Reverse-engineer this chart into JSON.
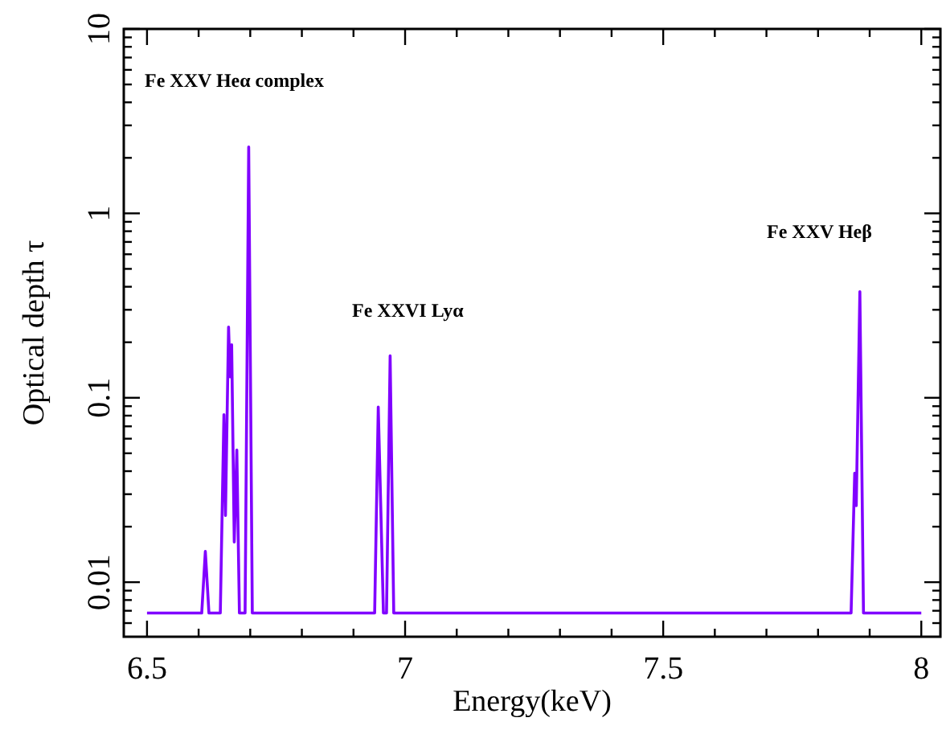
{
  "chart_data": {
    "type": "line",
    "xlabel": "Energy(keV)",
    "ylabel": "Optical depth τ",
    "log": "y",
    "grid": false,
    "line_style": "solid",
    "xlim": [
      6.455,
      8.037
    ],
    "ylim": [
      0.00506,
      10
    ],
    "xticks": [
      6.5,
      {
        "value": 6.6,
        "label": null
      },
      {
        "value": 6.7,
        "label": null
      },
      {
        "value": 6.8,
        "label": null
      },
      {
        "value": 6.9,
        "label": null
      },
      7,
      {
        "value": 7.1,
        "label": null
      },
      {
        "value": 7.2,
        "label": null
      },
      {
        "value": 7.3,
        "label": null
      },
      {
        "value": 7.4,
        "label": null
      },
      7.5,
      {
        "value": 7.6,
        "label": null
      },
      {
        "value": 7.7,
        "label": null
      },
      {
        "value": 7.8,
        "label": null
      },
      {
        "value": 7.9,
        "label": null
      },
      8
    ],
    "yticks": [
      {
        "value": 0.006,
        "label": null
      },
      {
        "value": 0.007,
        "label": null
      },
      {
        "value": 0.008,
        "label": null
      },
      {
        "value": 0.009,
        "label": null
      },
      0.01,
      {
        "value": 0.02,
        "label": null
      },
      {
        "value": 0.03,
        "label": null
      },
      {
        "value": 0.04,
        "label": null
      },
      {
        "value": 0.05,
        "label": null
      },
      {
        "value": 0.06,
        "label": null
      },
      {
        "value": 0.07,
        "label": null
      },
      {
        "value": 0.08,
        "label": null
      },
      {
        "value": 0.09,
        "label": null
      },
      0.1,
      {
        "value": 0.2,
        "label": null
      },
      {
        "value": 0.3,
        "label": null
      },
      {
        "value": 0.4,
        "label": null
      },
      {
        "value": 0.5,
        "label": null
      },
      {
        "value": 0.6,
        "label": null
      },
      {
        "value": 0.7,
        "label": null
      },
      {
        "value": 0.8,
        "label": null
      },
      {
        "value": 0.9,
        "label": null
      },
      1,
      {
        "value": 2,
        "label": null
      },
      {
        "value": 3,
        "label": null
      },
      {
        "value": 4,
        "label": null
      },
      {
        "value": 5,
        "label": null
      },
      {
        "value": 6,
        "label": null
      },
      {
        "value": 7,
        "label": null
      },
      {
        "value": 8,
        "label": null
      },
      {
        "value": 9,
        "label": null
      },
      10
    ],
    "annotations": [
      "Fe XXV Heα complex",
      "Fe XXVI Lyα",
      "Fe XXV Heβ"
    ],
    "series": [
      {
        "color": "#8000ff",
        "x": [
          6.5,
          6.606,
          6.613,
          6.62,
          6.642,
          6.649,
          6.652,
          6.658,
          6.661,
          6.664,
          6.669,
          6.674,
          6.679,
          6.69,
          6.697,
          6.704,
          6.941,
          6.948,
          6.958,
          6.964,
          6.971,
          6.978,
          7.864,
          7.871,
          7.874,
          7.881,
          7.888,
          8.0
        ],
        "values": [
          0.0068,
          0.0068,
          0.0147,
          0.0068,
          0.0068,
          0.081,
          0.023,
          0.242,
          0.13,
          0.194,
          0.0165,
          0.052,
          0.0068,
          0.0068,
          2.29,
          0.0068,
          0.0068,
          0.089,
          0.0068,
          0.0068,
          0.169,
          0.0068,
          0.0068,
          0.039,
          0.026,
          0.376,
          0.0068,
          0.0068
        ]
      }
    ]
  }
}
